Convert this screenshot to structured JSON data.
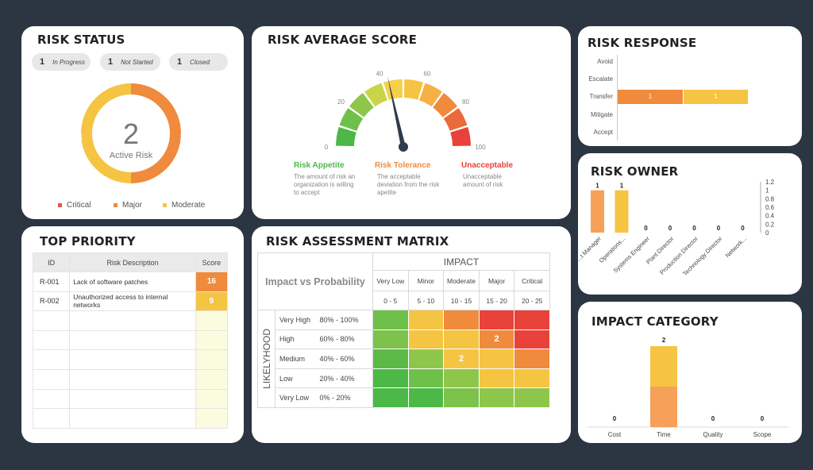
{
  "risk_status": {
    "title": "RISK STATUS",
    "pills": [
      {
        "count": "1",
        "label": "In Progress"
      },
      {
        "count": "1",
        "label": "Not Started"
      },
      {
        "count": "1",
        "label": "Closed"
      }
    ],
    "donut": {
      "center_value": "2",
      "center_label": "Active Risk",
      "left_value": "1",
      "right_value": "1"
    },
    "legend": [
      {
        "label": "Critical",
        "color": "#e8573f"
      },
      {
        "label": "Major",
        "color": "#f08a3c"
      },
      {
        "label": "Moderate",
        "color": "#f6c443"
      }
    ]
  },
  "gauge": {
    "title": "RISK AVERAGE SCORE",
    "ticks": [
      "0",
      "20",
      "40",
      "60",
      "80",
      "100"
    ],
    "value": 43,
    "labels": [
      {
        "title": "Risk Appetite",
        "color": "#4cb847",
        "desc": "The amount of risk an organization is willing to accept"
      },
      {
        "title": "Risk Tolerance",
        "color": "#f08a3c",
        "desc": "The acceptable deviation from the risk apetite"
      },
      {
        "title": "Unacceptable",
        "color": "#e8423a",
        "desc": "Unacceptable amount of risk"
      }
    ]
  },
  "risk_response": {
    "title": "RISK RESPONSE",
    "categories": [
      "Avoid",
      "Escalate",
      "Transfer",
      "Mitigate",
      "Accept"
    ],
    "transfer_segments": [
      {
        "value": "1",
        "color": "#f08a3c"
      },
      {
        "value": "1",
        "color": "#f6c443"
      }
    ]
  },
  "risk_owner": {
    "title": "RISK OWNER",
    "categories": [
      "...t Manager",
      "Operations...",
      "Systems Engineer",
      "Plant Director",
      "Production Director",
      "Technology Director",
      "Network..."
    ],
    "values": [
      1,
      1,
      0,
      0,
      0,
      0,
      0
    ],
    "value_labels": [
      "1",
      "1",
      "0",
      "0",
      "0",
      "0",
      "0"
    ],
    "colors": [
      "#f6a05a",
      "#f6c443"
    ],
    "y_ticks": [
      "1.2",
      "1",
      "0.8",
      "0.6",
      "0.4",
      "0.2",
      "0"
    ]
  },
  "top_priority": {
    "title": "TOP PRIORITY",
    "headers": [
      "ID",
      "Risk Description",
      "Score"
    ],
    "rows": [
      {
        "id": "R-001",
        "desc": "Lack of software patches",
        "score": "16",
        "color": "#f08a3c"
      },
      {
        "id": "R-002",
        "desc": "Unauthorized access to internal networks",
        "score": "9",
        "color": "#f6c443"
      }
    ],
    "empty_rows": 6
  },
  "matrix": {
    "title": "RISK ASSESSMENT MATRIX",
    "corner": "Impact vs Probability",
    "impact_label": "IMPACT",
    "likelihood_label": "LIKELYHOOD",
    "impacts": [
      {
        "name": "Very Low",
        "range": "0 - 5"
      },
      {
        "name": "Minor",
        "range": "5 - 10"
      },
      {
        "name": "Moderate",
        "range": "10 - 15"
      },
      {
        "name": "Major",
        "range": "15 - 20"
      },
      {
        "name": "Critical",
        "range": "20 - 25"
      }
    ],
    "likelihoods": [
      {
        "name": "Very High",
        "range": "80% - 100%"
      },
      {
        "name": "High",
        "range": "60% - 80%"
      },
      {
        "name": "Medium",
        "range": "40% - 60%"
      },
      {
        "name": "Low",
        "range": "20% - 40%"
      },
      {
        "name": "Very Low",
        "range": "0% - 20%"
      }
    ],
    "cells": [
      [
        {
          "c": "#6fc04a",
          "v": ""
        },
        {
          "c": "#f6c443",
          "v": ""
        },
        {
          "c": "#f08a3c",
          "v": ""
        },
        {
          "c": "#e8423a",
          "v": ""
        },
        {
          "c": "#e8423a",
          "v": ""
        }
      ],
      [
        {
          "c": "#7dc24b",
          "v": ""
        },
        {
          "c": "#f6c443",
          "v": ""
        },
        {
          "c": "#f6c443",
          "v": ""
        },
        {
          "c": "#f08a3c",
          "v": "2"
        },
        {
          "c": "#e8423a",
          "v": ""
        }
      ],
      [
        {
          "c": "#5cb948",
          "v": ""
        },
        {
          "c": "#8ec64b",
          "v": ""
        },
        {
          "c": "#f6c443",
          "v": "2"
        },
        {
          "c": "#f6c443",
          "v": ""
        },
        {
          "c": "#f08a3c",
          "v": ""
        }
      ],
      [
        {
          "c": "#4cb847",
          "v": ""
        },
        {
          "c": "#6fc04a",
          "v": ""
        },
        {
          "c": "#8ec64b",
          "v": ""
        },
        {
          "c": "#f6c443",
          "v": ""
        },
        {
          "c": "#f6c443",
          "v": ""
        }
      ],
      [
        {
          "c": "#4cb847",
          "v": ""
        },
        {
          "c": "#4cb847",
          "v": ""
        },
        {
          "c": "#7dc24b",
          "v": ""
        },
        {
          "c": "#8ec64b",
          "v": ""
        },
        {
          "c": "#8ec64b",
          "v": ""
        }
      ]
    ]
  },
  "impact_category": {
    "title": "IMPACT CATEGORY",
    "categories": [
      "Cost",
      "Time",
      "Quality",
      "Scope"
    ],
    "value_labels": [
      "0",
      "2",
      "0",
      "0"
    ],
    "time_segments": [
      "#f6a05a",
      "#f6c443"
    ]
  },
  "chart_data": [
    {
      "type": "bar",
      "title": "RISK RESPONSE",
      "categories": [
        "Avoid",
        "Escalate",
        "Transfer",
        "Mitigate",
        "Accept"
      ],
      "series": [
        {
          "values": [
            0,
            0,
            1,
            0,
            0
          ]
        },
        {
          "values": [
            0,
            0,
            1,
            0,
            0
          ]
        }
      ],
      "orientation": "horizontal",
      "stacked": true
    },
    {
      "type": "bar",
      "title": "RISK OWNER",
      "categories": [
        "...t Manager",
        "Operations...",
        "Systems Engineer",
        "Plant Director",
        "Production Director",
        "Technology Director",
        "Network..."
      ],
      "values": [
        1,
        1,
        0,
        0,
        0,
        0,
        0
      ],
      "ylim": [
        0,
        1.2
      ]
    },
    {
      "type": "bar",
      "title": "IMPACT CATEGORY",
      "categories": [
        "Cost",
        "Time",
        "Quality",
        "Scope"
      ],
      "series": [
        {
          "values": [
            0,
            1,
            0,
            0
          ]
        },
        {
          "values": [
            0,
            1,
            0,
            0
          ]
        }
      ],
      "stacked": true
    }
  ]
}
